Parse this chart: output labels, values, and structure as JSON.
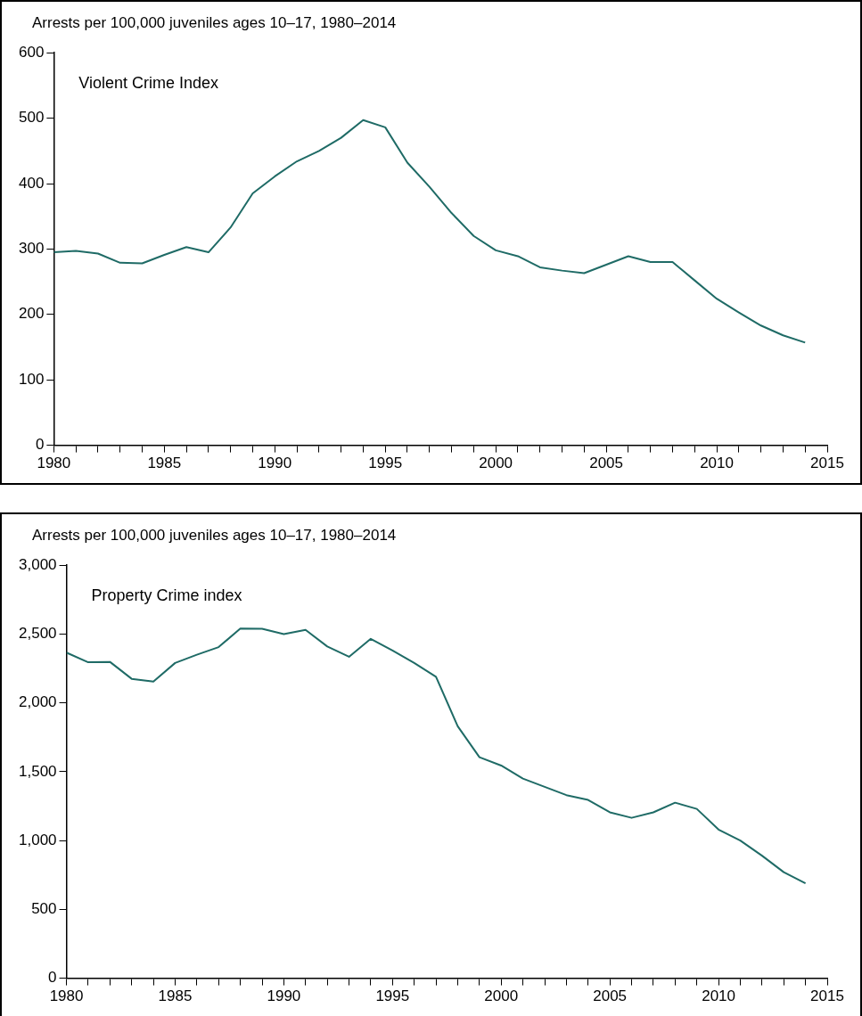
{
  "chart_data": [
    {
      "type": "line",
      "ylabel": "Arrests per 100,000 juveniles ages 10–17, 1980–2014",
      "annotations": [
        "Violent Crime Index"
      ],
      "x": [
        1980,
        1981,
        1982,
        1983,
        1984,
        1985,
        1986,
        1987,
        1988,
        1989,
        1990,
        1991,
        1992,
        1993,
        1994,
        1995,
        1996,
        1997,
        1998,
        1999,
        2000,
        2001,
        2002,
        2003,
        2004,
        2005,
        2006,
        2007,
        2008,
        2009,
        2010,
        2011,
        2012,
        2013,
        2014
      ],
      "series": [
        {
          "color": "#1f6b66",
          "values": [
            295,
            297,
            293,
            279,
            278,
            291,
            303,
            295,
            333,
            385,
            411,
            434,
            450,
            470,
            497,
            486,
            432,
            395,
            355,
            320,
            298,
            289,
            272,
            267,
            263,
            276,
            289,
            280,
            280,
            252,
            224,
            203,
            183,
            168,
            157
          ]
        }
      ],
      "xlim": [
        1980,
        2015
      ],
      "xticks": [
        1980,
        {
          "value": 1981,
          "label": null
        },
        {
          "value": 1982,
          "label": null
        },
        {
          "value": 1983,
          "label": null
        },
        {
          "value": 1984,
          "label": null
        },
        1985,
        {
          "value": 1986,
          "label": null
        },
        {
          "value": 1987,
          "label": null
        },
        {
          "value": 1988,
          "label": null
        },
        {
          "value": 1989,
          "label": null
        },
        1990,
        {
          "value": 1991,
          "label": null
        },
        {
          "value": 1992,
          "label": null
        },
        {
          "value": 1993,
          "label": null
        },
        {
          "value": 1994,
          "label": null
        },
        1995,
        {
          "value": 1996,
          "label": null
        },
        {
          "value": 1997,
          "label": null
        },
        {
          "value": 1998,
          "label": null
        },
        {
          "value": 1999,
          "label": null
        },
        2000,
        {
          "value": 2001,
          "label": null
        },
        {
          "value": 2002,
          "label": null
        },
        {
          "value": 2003,
          "label": null
        },
        {
          "value": 2004,
          "label": null
        },
        2005,
        {
          "value": 2006,
          "label": null
        },
        {
          "value": 2007,
          "label": null
        },
        {
          "value": 2008,
          "label": null
        },
        {
          "value": 2009,
          "label": null
        },
        2010,
        {
          "value": 2011,
          "label": null
        },
        {
          "value": 2012,
          "label": null
        },
        {
          "value": 2013,
          "label": null
        },
        {
          "value": 2014,
          "label": null
        },
        2015
      ],
      "ylim": [
        0,
        600
      ],
      "yticks": [
        0,
        100,
        200,
        300,
        400,
        500,
        600
      ],
      "grid": false,
      "legend": false,
      "marker": "none",
      "line_style": "solid"
    },
    {
      "type": "line",
      "ylabel": "Arrests per 100,000 juveniles ages 10–17, 1980–2014",
      "annotations": [
        "Property Crime index"
      ],
      "x": [
        1980,
        1981,
        1982,
        1983,
        1984,
        1985,
        1986,
        1987,
        1988,
        1989,
        1990,
        1991,
        1992,
        1993,
        1994,
        1995,
        1996,
        1997,
        1998,
        1999,
        2000,
        2001,
        2002,
        2003,
        2004,
        2005,
        2006,
        2007,
        2008,
        2009,
        2010,
        2011,
        2012,
        2013,
        2014
      ],
      "series": [
        {
          "color": "#1f6b66",
          "values": [
            2365,
            2295,
            2298,
            2175,
            2155,
            2290,
            2350,
            2405,
            2540,
            2538,
            2500,
            2530,
            2410,
            2335,
            2465,
            2380,
            2290,
            2190,
            1830,
            1605,
            1545,
            1450,
            1390,
            1330,
            1295,
            1205,
            1165,
            1205,
            1275,
            1230,
            1080,
            1000,
            890,
            770,
            690
          ]
        }
      ],
      "xlim": [
        1980,
        2015
      ],
      "xticks": [
        1980,
        {
          "value": 1981,
          "label": null
        },
        {
          "value": 1982,
          "label": null
        },
        {
          "value": 1983,
          "label": null
        },
        {
          "value": 1984,
          "label": null
        },
        1985,
        {
          "value": 1986,
          "label": null
        },
        {
          "value": 1987,
          "label": null
        },
        {
          "value": 1988,
          "label": null
        },
        {
          "value": 1989,
          "label": null
        },
        1990,
        {
          "value": 1991,
          "label": null
        },
        {
          "value": 1992,
          "label": null
        },
        {
          "value": 1993,
          "label": null
        },
        {
          "value": 1994,
          "label": null
        },
        1995,
        {
          "value": 1996,
          "label": null
        },
        {
          "value": 1997,
          "label": null
        },
        {
          "value": 1998,
          "label": null
        },
        {
          "value": 1999,
          "label": null
        },
        2000,
        {
          "value": 2001,
          "label": null
        },
        {
          "value": 2002,
          "label": null
        },
        {
          "value": 2003,
          "label": null
        },
        {
          "value": 2004,
          "label": null
        },
        2005,
        {
          "value": 2006,
          "label": null
        },
        {
          "value": 2007,
          "label": null
        },
        {
          "value": 2008,
          "label": null
        },
        {
          "value": 2009,
          "label": null
        },
        2010,
        {
          "value": 2011,
          "label": null
        },
        {
          "value": 2012,
          "label": null
        },
        {
          "value": 2013,
          "label": null
        },
        {
          "value": 2014,
          "label": null
        },
        2015
      ],
      "ylim": [
        0,
        3000
      ],
      "yticks": [
        0,
        500,
        {
          "value": 1000,
          "label": "1,000"
        },
        {
          "value": 1500,
          "label": "1,500"
        },
        {
          "value": 2000,
          "label": "2,000"
        },
        {
          "value": 2500,
          "label": "2,500"
        },
        {
          "value": 3000,
          "label": "3,000"
        }
      ],
      "grid": false,
      "legend": false,
      "marker": "none",
      "line_style": "solid"
    }
  ]
}
